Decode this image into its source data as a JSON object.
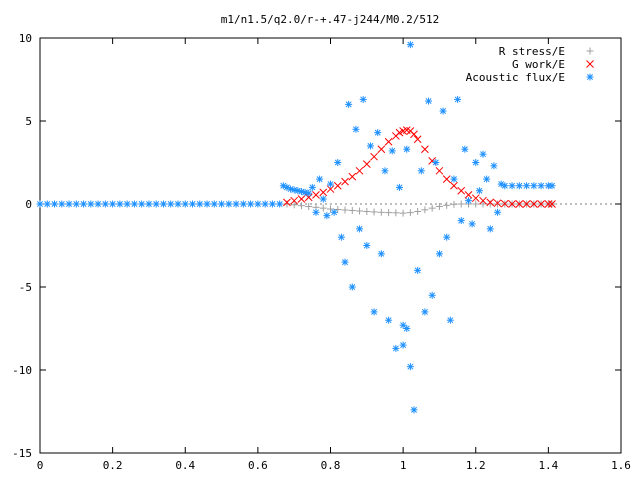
{
  "chart_data": {
    "type": "scatter",
    "title": "m1/n1.5/q2.0/r-+.47-j244/M0.2/512",
    "xlabel": "",
    "ylabel": "",
    "xlim": [
      0,
      1.6
    ],
    "ylim": [
      -15,
      10
    ],
    "xticks": [
      0,
      0.2,
      0.4,
      0.6,
      0.8,
      1,
      1.2,
      1.4,
      1.6
    ],
    "xtick_labels": [
      "0",
      "0.2",
      "0.4",
      "0.6",
      "0.8",
      "1",
      "1.2",
      "1.4",
      "1.6"
    ],
    "yticks": [
      -15,
      -10,
      -5,
      0,
      5,
      10
    ],
    "ytick_labels": [
      "-15",
      "-10",
      "-5",
      "0",
      "5",
      "10"
    ],
    "grid": false,
    "legend_position": "top-right",
    "series": [
      {
        "name": "R stress/E",
        "marker": "+",
        "color": "#a0a0a0",
        "points": [
          [
            0.68,
            0.0
          ],
          [
            0.7,
            -0.05
          ],
          [
            0.72,
            -0.1
          ],
          [
            0.74,
            -0.15
          ],
          [
            0.76,
            -0.2
          ],
          [
            0.78,
            -0.25
          ],
          [
            0.8,
            -0.3
          ],
          [
            0.82,
            -0.33
          ],
          [
            0.84,
            -0.36
          ],
          [
            0.86,
            -0.39
          ],
          [
            0.88,
            -0.42
          ],
          [
            0.9,
            -0.45
          ],
          [
            0.92,
            -0.48
          ],
          [
            0.94,
            -0.5
          ],
          [
            0.96,
            -0.52
          ],
          [
            0.98,
            -0.53
          ],
          [
            1.0,
            -0.55
          ],
          [
            1.02,
            -0.52
          ],
          [
            1.04,
            -0.45
          ],
          [
            1.06,
            -0.35
          ],
          [
            1.08,
            -0.25
          ],
          [
            1.1,
            -0.15
          ],
          [
            1.12,
            -0.08
          ],
          [
            1.14,
            -0.02
          ],
          [
            1.16,
            0.0
          ],
          [
            1.18,
            0.0
          ],
          [
            1.2,
            0.0
          ],
          [
            1.22,
            0.0
          ],
          [
            1.24,
            0.0
          ],
          [
            1.26,
            0.0
          ],
          [
            1.28,
            0.0
          ],
          [
            1.3,
            0.0
          ],
          [
            1.32,
            0.0
          ],
          [
            1.34,
            0.0
          ],
          [
            1.36,
            0.0
          ],
          [
            1.38,
            0.0
          ],
          [
            1.4,
            0.0
          ],
          [
            1.41,
            0.0
          ]
        ]
      },
      {
        "name": "G work/E",
        "marker": "x",
        "color": "#ff0000",
        "points": [
          [
            0.68,
            0.1
          ],
          [
            0.7,
            0.2
          ],
          [
            0.72,
            0.3
          ],
          [
            0.74,
            0.4
          ],
          [
            0.76,
            0.55
          ],
          [
            0.78,
            0.7
          ],
          [
            0.8,
            0.9
          ],
          [
            0.82,
            1.1
          ],
          [
            0.84,
            1.35
          ],
          [
            0.86,
            1.65
          ],
          [
            0.88,
            2.0
          ],
          [
            0.9,
            2.4
          ],
          [
            0.92,
            2.85
          ],
          [
            0.94,
            3.3
          ],
          [
            0.96,
            3.75
          ],
          [
            0.98,
            4.1
          ],
          [
            0.99,
            4.3
          ],
          [
            1.0,
            4.4
          ],
          [
            1.01,
            4.45
          ],
          [
            1.02,
            4.4
          ],
          [
            1.03,
            4.2
          ],
          [
            1.04,
            3.9
          ],
          [
            1.06,
            3.3
          ],
          [
            1.08,
            2.6
          ],
          [
            1.1,
            2.0
          ],
          [
            1.12,
            1.5
          ],
          [
            1.14,
            1.1
          ],
          [
            1.16,
            0.8
          ],
          [
            1.18,
            0.55
          ],
          [
            1.2,
            0.35
          ],
          [
            1.22,
            0.2
          ],
          [
            1.24,
            0.1
          ],
          [
            1.26,
            0.05
          ],
          [
            1.28,
            0.02
          ],
          [
            1.3,
            0.0
          ],
          [
            1.32,
            0.0
          ],
          [
            1.34,
            0.0
          ],
          [
            1.36,
            0.0
          ],
          [
            1.38,
            0.0
          ],
          [
            1.4,
            0.0
          ],
          [
            1.41,
            0.0
          ]
        ]
      },
      {
        "name": "Acoustic flux/E",
        "marker": "*",
        "color": "#1e90ff",
        "points": [
          [
            0.0,
            0.0
          ],
          [
            0.02,
            0.0
          ],
          [
            0.04,
            0.0
          ],
          [
            0.06,
            0.0
          ],
          [
            0.08,
            0.0
          ],
          [
            0.1,
            0.0
          ],
          [
            0.12,
            0.0
          ],
          [
            0.14,
            0.0
          ],
          [
            0.16,
            0.0
          ],
          [
            0.18,
            0.0
          ],
          [
            0.2,
            0.0
          ],
          [
            0.22,
            0.0
          ],
          [
            0.24,
            0.0
          ],
          [
            0.26,
            0.0
          ],
          [
            0.28,
            0.0
          ],
          [
            0.3,
            0.0
          ],
          [
            0.32,
            0.0
          ],
          [
            0.34,
            0.0
          ],
          [
            0.36,
            0.0
          ],
          [
            0.38,
            0.0
          ],
          [
            0.4,
            0.0
          ],
          [
            0.42,
            0.0
          ],
          [
            0.44,
            0.0
          ],
          [
            0.46,
            0.0
          ],
          [
            0.48,
            0.0
          ],
          [
            0.5,
            0.0
          ],
          [
            0.52,
            0.0
          ],
          [
            0.54,
            0.0
          ],
          [
            0.56,
            0.0
          ],
          [
            0.58,
            0.0
          ],
          [
            0.6,
            0.0
          ],
          [
            0.62,
            0.0
          ],
          [
            0.64,
            0.0
          ],
          [
            0.66,
            0.0
          ],
          [
            0.67,
            1.1
          ],
          [
            0.68,
            1.0
          ],
          [
            0.69,
            0.9
          ],
          [
            0.7,
            0.85
          ],
          [
            0.71,
            0.8
          ],
          [
            0.72,
            0.75
          ],
          [
            0.73,
            0.7
          ],
          [
            0.74,
            0.65
          ],
          [
            0.75,
            1.0
          ],
          [
            0.76,
            -0.5
          ],
          [
            0.77,
            1.5
          ],
          [
            0.78,
            0.3
          ],
          [
            0.79,
            -0.7
          ],
          [
            0.8,
            1.2
          ],
          [
            0.81,
            -0.5
          ],
          [
            0.82,
            2.5
          ],
          [
            0.83,
            -2.0
          ],
          [
            0.84,
            -3.5
          ],
          [
            0.85,
            6.0
          ],
          [
            0.86,
            -5.0
          ],
          [
            0.87,
            4.5
          ],
          [
            0.88,
            -1.5
          ],
          [
            0.89,
            6.3
          ],
          [
            0.9,
            -2.5
          ],
          [
            0.91,
            3.5
          ],
          [
            0.92,
            -6.5
          ],
          [
            0.93,
            4.3
          ],
          [
            0.94,
            -3.0
          ],
          [
            0.95,
            2.0
          ],
          [
            0.96,
            -7.0
          ],
          [
            0.97,
            3.2
          ],
          [
            0.98,
            -8.7
          ],
          [
            0.99,
            1.0
          ],
          [
            1.0,
            -8.5
          ],
          [
            1.01,
            3.3
          ],
          [
            1.02,
            -9.8
          ],
          [
            1.0,
            -7.3
          ],
          [
            1.01,
            -7.5
          ],
          [
            1.02,
            9.6
          ],
          [
            1.03,
            -12.4
          ],
          [
            1.04,
            -4.0
          ],
          [
            1.05,
            2.0
          ],
          [
            1.06,
            -6.5
          ],
          [
            1.07,
            6.2
          ],
          [
            1.08,
            -5.5
          ],
          [
            1.09,
            2.5
          ],
          [
            1.1,
            -3.0
          ],
          [
            1.11,
            5.6
          ],
          [
            1.12,
            -2.0
          ],
          [
            1.13,
            -7.0
          ],
          [
            1.14,
            1.5
          ],
          [
            1.15,
            6.3
          ],
          [
            1.16,
            -1.0
          ],
          [
            1.17,
            3.3
          ],
          [
            1.18,
            0.2
          ],
          [
            1.19,
            -1.2
          ],
          [
            1.2,
            2.5
          ],
          [
            1.21,
            0.8
          ],
          [
            1.22,
            3.0
          ],
          [
            1.23,
            1.5
          ],
          [
            1.24,
            -1.5
          ],
          [
            1.25,
            2.3
          ],
          [
            1.26,
            -0.5
          ],
          [
            1.27,
            1.2
          ],
          [
            1.28,
            1.1
          ],
          [
            1.3,
            1.1
          ],
          [
            1.32,
            1.1
          ],
          [
            1.34,
            1.1
          ],
          [
            1.36,
            1.1
          ],
          [
            1.38,
            1.1
          ],
          [
            1.4,
            1.1
          ],
          [
            1.41,
            1.1
          ]
        ]
      }
    ]
  }
}
